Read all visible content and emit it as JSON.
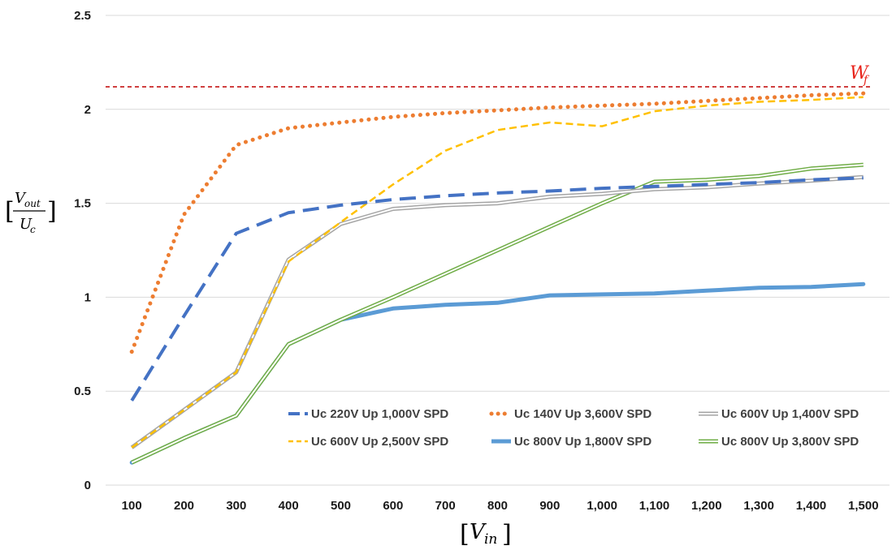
{
  "chart_data": {
    "type": "line",
    "title": "",
    "xlabel": "[V_in]",
    "ylabel": "[V_out / U_c]",
    "categories": [
      "100",
      "200",
      "300",
      "400",
      "500",
      "600",
      "700",
      "800",
      "900",
      "1,000",
      "1,100",
      "1,200",
      "1,300",
      "1,400",
      "1,500"
    ],
    "y_ticks": [
      "0",
      "0.5",
      "1",
      "1.5",
      "2",
      "2.5"
    ],
    "ylim": [
      0,
      2.5
    ],
    "grid": "horizontal",
    "legend_position": "bottom-right",
    "series": [
      {
        "name": "Uc 220V Up 1,000V SPD",
        "color": "#4472c4",
        "style": "dashed",
        "values": [
          0.45,
          0.9,
          1.34,
          1.45,
          1.49,
          1.52,
          1.54,
          1.555,
          1.565,
          1.58,
          1.59,
          1.6,
          1.61,
          1.625,
          1.635
        ]
      },
      {
        "name": "Uc 140V Up 3,600V SPD",
        "color": "#ed7d31",
        "style": "dotted",
        "values": [
          0.71,
          1.44,
          1.81,
          1.9,
          1.93,
          1.96,
          1.98,
          1.995,
          2.01,
          2.02,
          2.03,
          2.045,
          2.06,
          2.075,
          2.085
        ]
      },
      {
        "name": "Uc 600V Up 1,400V SPD",
        "color": "#a5a5a5",
        "style": "double",
        "values": [
          0.2,
          0.4,
          0.6,
          1.2,
          1.39,
          1.47,
          1.49,
          1.5,
          1.535,
          1.55,
          1.575,
          1.585,
          1.605,
          1.62,
          1.64
        ]
      },
      {
        "name": "Uc 600V Up 2,500V SPD",
        "color": "#ffc000",
        "style": "dashed-thin",
        "values": [
          0.2,
          0.4,
          0.6,
          1.19,
          1.4,
          1.6,
          1.78,
          1.89,
          1.93,
          1.91,
          1.99,
          2.02,
          2.04,
          2.05,
          2.065
        ]
      },
      {
        "name": "Uc 800V Up 1,800V SPD",
        "color": "#5b9bd5",
        "style": "thick",
        "values": [
          0.12,
          0.25,
          0.37,
          0.75,
          0.88,
          0.94,
          0.96,
          0.97,
          1.01,
          1.015,
          1.02,
          1.035,
          1.05,
          1.055,
          1.07
        ]
      },
      {
        "name": "Uc 800V Up 3,800V SPD",
        "color": "#70ad47",
        "style": "double",
        "values": [
          0.12,
          0.25,
          0.37,
          0.75,
          0.88,
          1.0,
          1.125,
          1.25,
          1.375,
          1.5,
          1.615,
          1.625,
          1.645,
          1.685,
          1.705
        ]
      }
    ],
    "reference_line": {
      "label": "W_f",
      "value": 2.12,
      "color": "#c00000",
      "style": "dashed"
    }
  }
}
